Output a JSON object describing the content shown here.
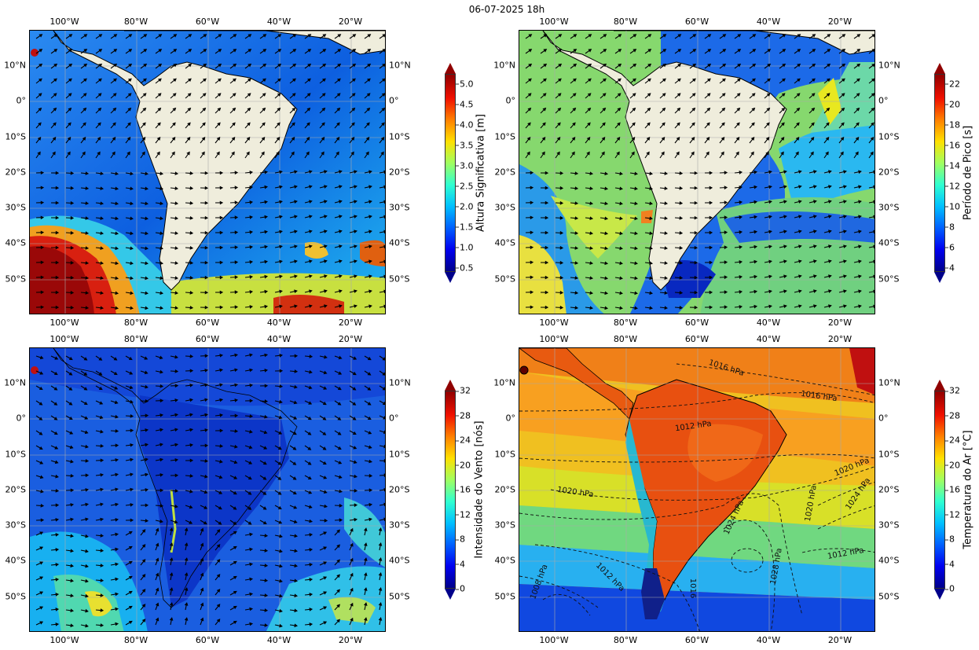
{
  "title": "06-07-2025 18h",
  "lon_ticks": [
    "100°W",
    "80°W",
    "60°W",
    "40°W",
    "20°W"
  ],
  "lat_ticks": [
    "10°N",
    "0°",
    "10°S",
    "20°S",
    "30°S",
    "40°S",
    "50°S"
  ],
  "panels": [
    {
      "id": "wave-height",
      "colorbar_label": "Altura Significativa [m]",
      "colorbar_ticks": [
        "0.5",
        "1.0",
        "1.5",
        "2.0",
        "2.5",
        "3.0",
        "3.5",
        "4.0",
        "4.5",
        "5.0"
      ],
      "colormap": "jet",
      "ocean_color": "#1f7fe8",
      "land_color": "#efeddc"
    },
    {
      "id": "peak-period",
      "colorbar_label": "Período de Pico [s]",
      "colorbar_ticks": [
        "4",
        "6",
        "8",
        "10",
        "12",
        "14",
        "16",
        "18",
        "20",
        "22"
      ],
      "colormap": "jet",
      "ocean_color": "#3db5e8",
      "land_color": "#efeddc"
    },
    {
      "id": "wind-speed",
      "colorbar_label": "Intensidade do Vento [nós]",
      "colorbar_ticks": [
        "0",
        "4",
        "8",
        "12",
        "16",
        "20",
        "24",
        "28",
        "32"
      ],
      "colormap": "jet",
      "ocean_color": "#1c5fe0"
    },
    {
      "id": "air-temperature",
      "colorbar_label": "Temperatura do Ar [°C]",
      "colorbar_ticks": [
        "0",
        "4",
        "8",
        "12",
        "16",
        "20",
        "24",
        "28",
        "32"
      ],
      "colormap": "jet",
      "contour_labels": [
        "1016 hPa",
        "1016 hPa",
        "1012 hPa",
        "1020 hPa",
        "1020 hPa",
        "1024 hPa",
        "1020 hPa",
        "1024 hPa",
        "1012 hPa",
        "1028 hPa",
        "1012 hPa",
        "1016",
        "1008 hPa"
      ]
    }
  ]
}
